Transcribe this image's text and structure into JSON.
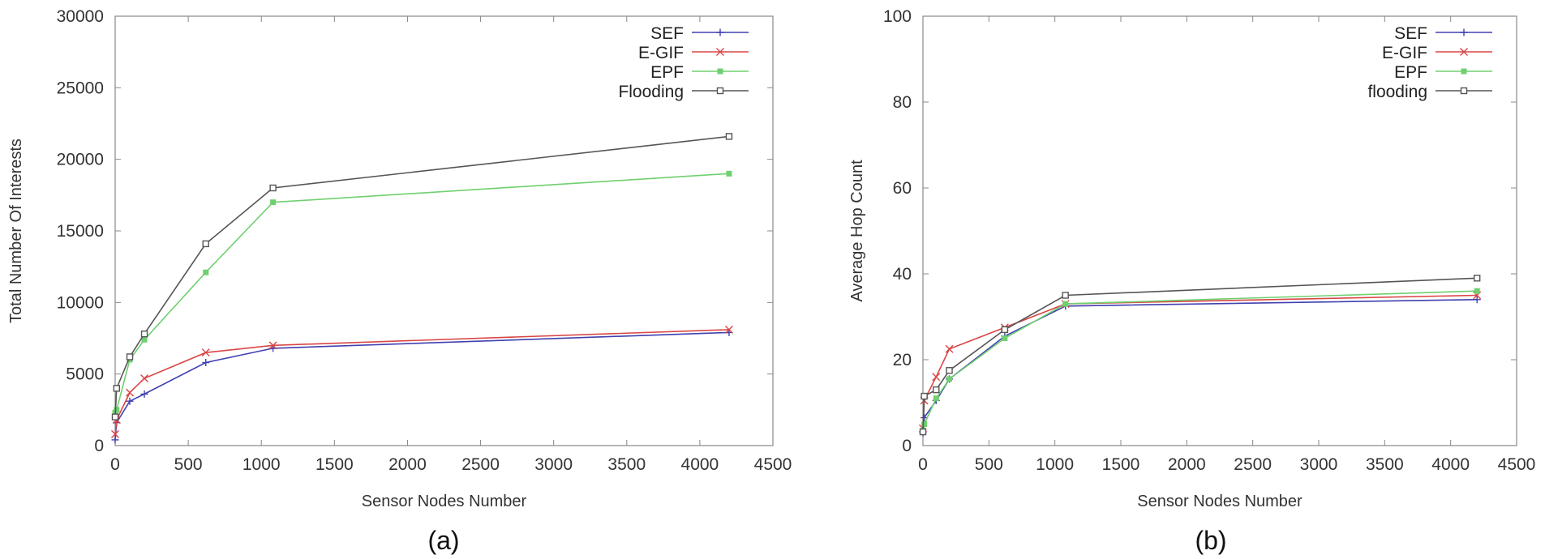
{
  "chart_data": [
    {
      "type": "line",
      "caption": "(a)",
      "xlabel": "Sensor Nodes Number",
      "ylabel": "Total Number Of Interests",
      "xlim": [
        0,
        4500
      ],
      "ylim": [
        0,
        30000
      ],
      "xticks": [
        0,
        500,
        1000,
        1500,
        2000,
        2500,
        3000,
        3500,
        4000,
        4500
      ],
      "yticks": [
        0,
        5000,
        10000,
        15000,
        20000,
        25000,
        30000
      ],
      "legend_position": "top-right",
      "x": [
        0,
        10,
        100,
        200,
        620,
        1080,
        4200
      ],
      "series": [
        {
          "name": "SEF",
          "color": "#4040b0",
          "marker": "plus",
          "values": [
            400,
            1600,
            3100,
            3600,
            5800,
            6800,
            7900
          ]
        },
        {
          "name": "E-GIF",
          "color": "#d94545",
          "marker": "cross",
          "values": [
            800,
            1800,
            3700,
            4700,
            6500,
            7000,
            8100
          ]
        },
        {
          "name": "EPF",
          "color": "#6fd06f",
          "marker": "filled-square",
          "values": [
            2300,
            2500,
            6000,
            7400,
            12100,
            17000,
            19000
          ]
        },
        {
          "name": "Flooding",
          "color": "#555555",
          "marker": "open-square",
          "values": [
            2000,
            4000,
            6200,
            7800,
            14100,
            18000,
            21600
          ]
        }
      ]
    },
    {
      "type": "line",
      "caption": "(b)",
      "xlabel": "Sensor Nodes Number",
      "ylabel": "Average Hop Count",
      "xlim": [
        0,
        4500
      ],
      "ylim": [
        0,
        100
      ],
      "xticks": [
        0,
        500,
        1000,
        1500,
        2000,
        2500,
        3000,
        3500,
        4000,
        4500
      ],
      "yticks": [
        0,
        20,
        40,
        60,
        80,
        100
      ],
      "legend_position": "top-right",
      "x": [
        0,
        10,
        100,
        200,
        620,
        1080,
        4200
      ],
      "series": [
        {
          "name": "SEF",
          "color": "#4040b0",
          "marker": "plus",
          "values": [
            3,
            6.5,
            10.5,
            15.5,
            25.5,
            32.5,
            34
          ]
        },
        {
          "name": "E-GIF",
          "color": "#d94545",
          "marker": "cross",
          "values": [
            4,
            10.5,
            16,
            22.5,
            27.5,
            33,
            35
          ]
        },
        {
          "name": "EPF",
          "color": "#6fd06f",
          "marker": "filled-square",
          "values": [
            3.5,
            5,
            11,
            15.5,
            25,
            33,
            36
          ]
        },
        {
          "name": "flooding",
          "color": "#555555",
          "marker": "open-square",
          "values": [
            3.2,
            11.5,
            13,
            17.5,
            27,
            35,
            39
          ]
        }
      ]
    }
  ]
}
